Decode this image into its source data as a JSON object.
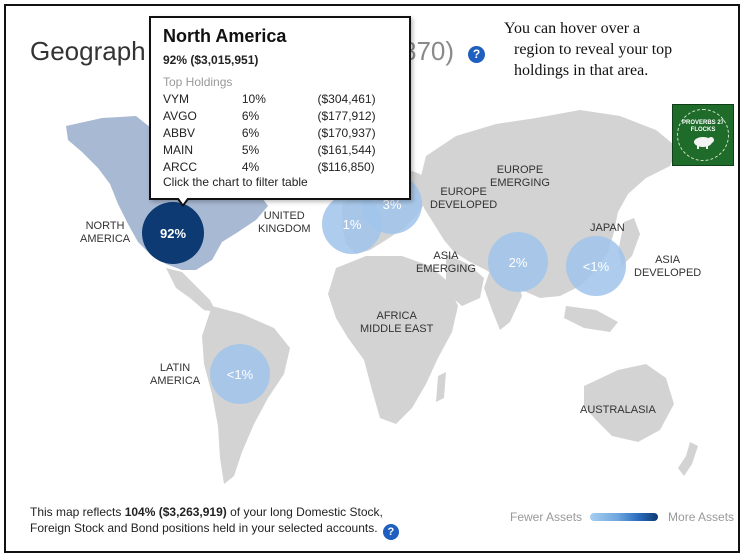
{
  "header": {
    "title_left": "Geograph",
    "title_right": "870)",
    "help_glyph": "?"
  },
  "annotation": {
    "line1": "You can hover over a",
    "line2": "region to reveal your top",
    "line3": "holdings in that area."
  },
  "logo": {
    "text_top": "PROVERBS 27 FLOCKS",
    "icon": "sheep-icon"
  },
  "regions": {
    "north_america": {
      "line1": "NORTH",
      "line2": "AMERICA",
      "value": "92%"
    },
    "united_kingdom": {
      "line1": "UNITED",
      "line2": "KINGDOM",
      "value": "1%"
    },
    "europe_developed": {
      "line1": "EUROPE",
      "line2": "DEVELOPED",
      "value": "3%"
    },
    "europe_emerging": {
      "line1": "EUROPE",
      "line2": "EMERGING"
    },
    "asia_emerging": {
      "line1": "ASIA",
      "line2": "EMERGING",
      "value": "2%"
    },
    "japan": {
      "line1": "JAPAN"
    },
    "asia_developed": {
      "line1": "ASIA",
      "line2": "DEVELOPED",
      "value": "<1%"
    },
    "africa_middle_east": {
      "line1": "AFRICA",
      "line2": "MIDDLE EAST"
    },
    "latin_america": {
      "line1": "LATIN",
      "line2": "AMERICA",
      "value": "<1%"
    },
    "australasia": {
      "line1": "AUSTRALASIA"
    }
  },
  "tooltip": {
    "title": "North America",
    "summary": "92% ($3,015,951)",
    "holdings_label": "Top Holdings",
    "holdings": [
      {
        "symbol": "VYM",
        "pct": "10%",
        "value": "($304,461)"
      },
      {
        "symbol": "AVGO",
        "pct": "6%",
        "value": "($177,912)"
      },
      {
        "symbol": "ABBV",
        "pct": "6%",
        "value": "($170,937)"
      },
      {
        "symbol": "MAIN",
        "pct": "5%",
        "value": "($161,544)"
      },
      {
        "symbol": "ARCC",
        "pct": "4%",
        "value": "($116,850)"
      }
    ],
    "footer": "Click the chart to filter table"
  },
  "footer": {
    "text_a": "This map reflects ",
    "text_bold": "104% ($3,263,919)",
    "text_b": " of your long Domestic Stock,",
    "text_c": "Foreign Stock and Bond positions held in your selected accounts.",
    "help_glyph": "?"
  },
  "legend": {
    "fewer": "Fewer Assets",
    "more": "More Assets"
  },
  "colors": {
    "map_fill": "#d3d3d3",
    "north_america_fill": "#a8b9d3",
    "bubble_light": "#a0c4eb",
    "bubble_dark": "#0d3a73",
    "help_blue": "#1f5fbf",
    "logo_green": "#1e6b2a"
  }
}
